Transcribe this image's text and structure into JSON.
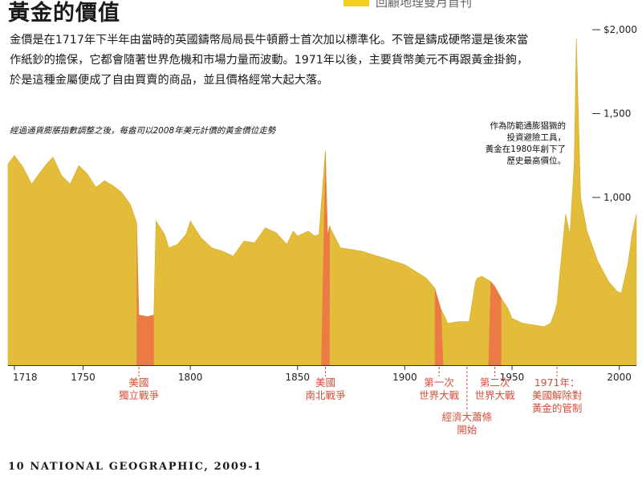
{
  "title": "黃金的價值",
  "header_tag": "回顧地理雙月首刊",
  "intro": "金價是在1717年下半年由當時的英國鑄幣局局長牛頓爵士首次加以標準化。不管是鑄成硬幣還是後來當作紙鈔的擔保，它都會隨著世界危機和市場力量而波動。1971年以後，主要貨幣美元不再跟黃金掛鉤，於是這種金屬便成了自由買賣的商品，並且價格經常大起大落。",
  "footer": "10  NATIONAL GEOGRAPHIC, 2009-1",
  "colors": {
    "area": "#e3bd3a",
    "highlight": "#ec7a45",
    "annotation": "#d2503c",
    "swatch": "#f2cf1f"
  },
  "chart_data": {
    "type": "area",
    "subtitle": "經過通貨膨脹指數調整之後，每盎司以2008年美元計價的黃金價位走勢",
    "x_ticks": [
      1718,
      1750,
      1800,
      1850,
      1900,
      1950,
      2000
    ],
    "y_ticks": [
      {
        "value": 1000,
        "label": "1,000"
      },
      {
        "value": 1500,
        "label": "1,500"
      },
      {
        "value": 2000,
        "label": "$2,000"
      }
    ],
    "xlim": [
      1715,
      2008
    ],
    "ylim": [
      0,
      2000
    ],
    "peak_note": [
      "作為防範通膨猖獗的",
      "投資避險工具，",
      "黃金在1980年創下了",
      "歷史最高價位。"
    ],
    "series": [
      {
        "x": [
          1715,
          1718,
          1722,
          1726,
          1730,
          1733,
          1736,
          1740,
          1744,
          1748,
          1752,
          1756,
          1760,
          1764,
          1768,
          1772,
          1775,
          1776,
          1780,
          1783,
          1784,
          1788,
          1790,
          1794,
          1798,
          1800,
          1805,
          1810,
          1815,
          1820,
          1825,
          1830,
          1835,
          1840,
          1845,
          1848,
          1850,
          1855,
          1858,
          1860,
          1863,
          1864,
          1865,
          1866,
          1870,
          1875,
          1880,
          1885,
          1890,
          1895,
          1900,
          1905,
          1910,
          1914,
          1917,
          1919,
          1920,
          1925,
          1930,
          1933,
          1934,
          1936,
          1940,
          1942,
          1945,
          1948,
          1950,
          1955,
          1960,
          1965,
          1968,
          1970,
          1971,
          1973,
          1975,
          1977,
          1979,
          1980,
          1982,
          1985,
          1990,
          1995,
          1999,
          2001,
          2004,
          2006,
          2008
        ],
        "y": [
          1200,
          1250,
          1180,
          1080,
          1150,
          1200,
          1240,
          1130,
          1080,
          1190,
          1140,
          1060,
          1100,
          1070,
          1030,
          960,
          850,
          300,
          290,
          300,
          860,
          780,
          700,
          720,
          780,
          860,
          760,
          700,
          680,
          650,
          740,
          730,
          820,
          790,
          720,
          800,
          770,
          800,
          770,
          780,
          1280,
          780,
          830,
          800,
          700,
          690,
          680,
          660,
          640,
          620,
          600,
          560,
          520,
          460,
          330,
          280,
          250,
          260,
          260,
          500,
          520,
          530,
          500,
          470,
          400,
          340,
          280,
          250,
          240,
          230,
          250,
          320,
          370,
          640,
          900,
          780,
          1200,
          1950,
          1000,
          800,
          620,
          500,
          440,
          430,
          600,
          780,
          900
        ],
        "highlights": [
          {
            "from": 1775,
            "to": 1783
          },
          {
            "from": 1861,
            "to": 1865
          },
          {
            "from": 1914,
            "to": 1918
          },
          {
            "from": 1939,
            "to": 1945
          }
        ]
      }
    ],
    "annotations": [
      {
        "year": 1776,
        "lines": [
          "美國",
          "獨立戰爭"
        ]
      },
      {
        "year": 1863,
        "lines": [
          "美國",
          "南北戰爭"
        ]
      },
      {
        "year": 1916,
        "lines": [
          "第一次",
          "世界大戰"
        ]
      },
      {
        "year": 1929,
        "lines": [
          "經濟大蕭條",
          "開始"
        ]
      },
      {
        "year": 1942,
        "lines": [
          "第二次",
          "世界大戰"
        ]
      },
      {
        "year": 1971,
        "lines": [
          "1971年：",
          "美國解除對",
          "黃金的管制"
        ]
      }
    ]
  }
}
